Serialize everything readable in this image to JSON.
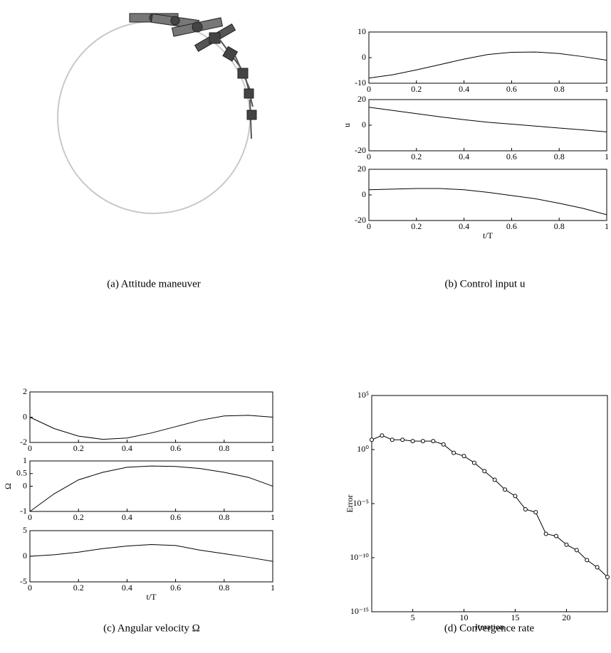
{
  "captions": [
    "(a) Attitude maneuver",
    "(b) Control input u",
    "(c) Angular velocity Ω",
    "(d) Convergence rate"
  ],
  "chart_data": [
    {
      "type": "line",
      "color": "#000000",
      "x": [
        0,
        0.1,
        0.2,
        0.3,
        0.4,
        0.5,
        0.6,
        0.7,
        0.8,
        0.9,
        1
      ],
      "values": [
        -8,
        -6.7,
        -4.8,
        -2.7,
        -0.6,
        1.2,
        2.1,
        2.2,
        1.6,
        0.4,
        -1
      ],
      "xlim": [
        0,
        1
      ],
      "ylim": [
        -10,
        10
      ],
      "xticks": [
        0,
        0.2,
        0.4,
        0.6,
        0.8,
        1
      ],
      "yticks": [
        -10,
        0,
        10
      ]
    },
    {
      "type": "line",
      "color": "#000000",
      "x": [
        0,
        0.1,
        0.2,
        0.3,
        0.4,
        0.5,
        0.6,
        0.7,
        0.8,
        0.9,
        1
      ],
      "values": [
        14,
        11.5,
        9,
        6.5,
        4.3,
        2.3,
        0.8,
        -0.7,
        -2.2,
        -3.7,
        -5.2
      ],
      "xlim": [
        0,
        1
      ],
      "ylim": [
        -20,
        20
      ],
      "xticks": [
        0,
        0.2,
        0.4,
        0.6,
        0.8,
        1
      ],
      "yticks": [
        -20,
        0,
        20
      ],
      "ylabel": "u"
    },
    {
      "type": "line",
      "color": "#000000",
      "x": [
        0,
        0.1,
        0.2,
        0.3,
        0.4,
        0.5,
        0.6,
        0.7,
        0.8,
        0.9,
        1
      ],
      "values": [
        4,
        4.5,
        5,
        5,
        4,
        2,
        -0.5,
        -3,
        -6.5,
        -10.5,
        -15.5
      ],
      "xlim": [
        0,
        1
      ],
      "ylim": [
        -20,
        20
      ],
      "xticks": [
        0,
        0.2,
        0.4,
        0.6,
        0.8,
        1
      ],
      "yticks": [
        -20,
        0,
        20
      ],
      "xlabel": "t/T"
    },
    {
      "type": "line",
      "color": "#000000",
      "x": [
        0,
        0.1,
        0.2,
        0.3,
        0.4,
        0.5,
        0.6,
        0.7,
        0.8,
        0.9,
        1
      ],
      "values": [
        0,
        -0.9,
        -1.5,
        -1.75,
        -1.65,
        -1.25,
        -0.75,
        -0.25,
        0.1,
        0.15,
        0
      ],
      "xlim": [
        0,
        1
      ],
      "ylim": [
        -2,
        2
      ],
      "xticks": [
        0,
        0.2,
        0.4,
        0.6,
        0.8,
        1
      ],
      "yticks": [
        -2,
        0,
        2
      ]
    },
    {
      "type": "line",
      "color": "#000000",
      "x": [
        0,
        0.1,
        0.2,
        0.3,
        0.4,
        0.5,
        0.6,
        0.7,
        0.8,
        0.9,
        1
      ],
      "values": [
        -1,
        -0.3,
        0.25,
        0.55,
        0.75,
        0.8,
        0.78,
        0.7,
        0.55,
        0.35,
        0
      ],
      "xlim": [
        0,
        1
      ],
      "ylim": [
        -1,
        1
      ],
      "xticks": [
        0,
        0.2,
        0.4,
        0.6,
        0.8,
        1
      ],
      "yticks": [
        -1,
        0,
        0.5,
        1
      ],
      "ylabel": "Ω"
    },
    {
      "type": "line",
      "color": "#000000",
      "x": [
        0,
        0.1,
        0.2,
        0.3,
        0.4,
        0.5,
        0.6,
        0.7,
        0.8,
        0.9,
        1
      ],
      "values": [
        0,
        0.3,
        0.8,
        1.5,
        2,
        2.3,
        2.1,
        1.2,
        0.5,
        -0.2,
        -1
      ],
      "xlim": [
        0,
        1
      ],
      "ylim": [
        -5,
        5
      ],
      "xticks": [
        0,
        0.2,
        0.4,
        0.6,
        0.8,
        1
      ],
      "yticks": [
        -5,
        0,
        5
      ],
      "xlabel": "t/T"
    },
    {
      "type": "line",
      "color": "#000000",
      "log_y": true,
      "marker": "circle",
      "x": [
        1,
        2,
        3,
        4,
        5,
        6,
        7,
        8,
        9,
        10,
        11,
        12,
        13,
        14,
        15,
        16,
        17,
        18,
        19,
        20,
        21,
        22,
        23,
        24
      ],
      "values": [
        8,
        20,
        8,
        8,
        6,
        6,
        6,
        3,
        0.5,
        0.25,
        0.06,
        0.01,
        0.0016,
        0.0002,
        5e-05,
        3e-06,
        1.6e-06,
        1.6e-08,
        1e-08,
        1.6e-09,
        5e-10,
        6e-11,
        1.3e-11,
        1.6e-12
      ],
      "xlim": [
        1,
        24
      ],
      "ylim": [
        1e-15,
        100000
      ],
      "xticks": [
        5,
        10,
        15,
        20
      ],
      "yticks": [
        {
          "value": 1e-15,
          "label": "10⁻¹⁵"
        },
        {
          "value": 1e-10,
          "label": "10⁻¹⁰"
        },
        {
          "value": 1e-05,
          "label": "10⁻⁵"
        },
        {
          "value": 1,
          "label": "10⁰"
        },
        {
          "value": 100000,
          "label": "10⁵"
        }
      ],
      "xlabel": "Iteration",
      "ylabel": "Error"
    }
  ]
}
